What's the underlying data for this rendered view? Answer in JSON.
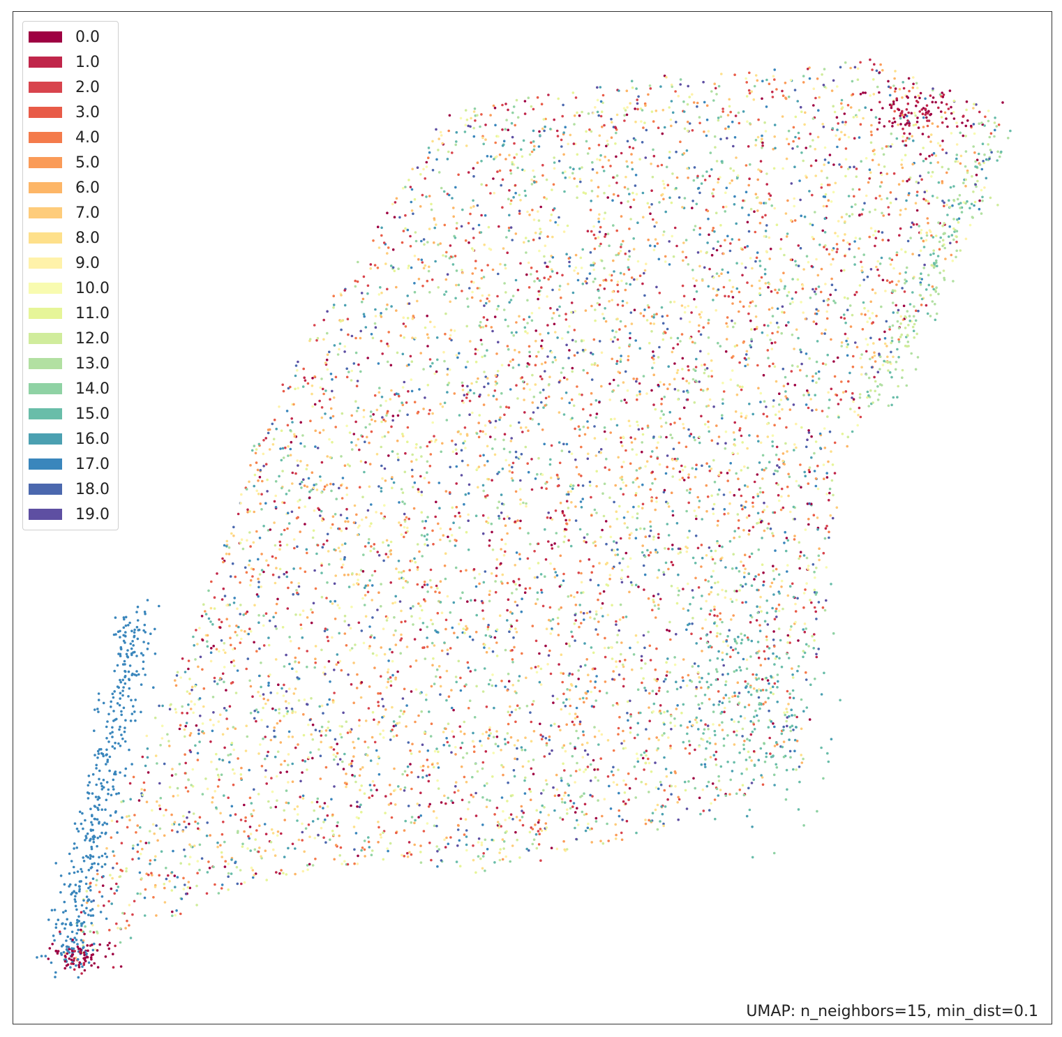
{
  "chart_data": {
    "type": "scatter",
    "title": "",
    "annotation": "UMAP: n_neighbors=15, min_dist=0.1",
    "xlabel": "",
    "ylabel": "",
    "axes_ticks": false,
    "grid": false,
    "legend_placement": "upper-left",
    "colormap": "Spectral",
    "categories": [
      "0.0",
      "1.0",
      "2.0",
      "3.0",
      "4.0",
      "5.0",
      "6.0",
      "7.0",
      "8.0",
      "9.0",
      "10.0",
      "11.0",
      "12.0",
      "13.0",
      "14.0",
      "15.0",
      "16.0",
      "17.0",
      "18.0",
      "19.0"
    ],
    "colors": [
      "#9e0142",
      "#c0264a",
      "#d8444d",
      "#e85b48",
      "#f47b4b",
      "#fa9b58",
      "#fdb667",
      "#fecc7b",
      "#fee08b",
      "#fff2aa",
      "#f8fbb0",
      "#e6f598",
      "#d0ec9c",
      "#b2e0a2",
      "#8fd2a4",
      "#69bda9",
      "#4ba0b1",
      "#3a86bc",
      "#4b68ae",
      "#5e4fa2"
    ],
    "point_count_approx": 10000,
    "regions": [
      {
        "name": "main-body",
        "category": "mixed",
        "description": "diagonal cloud of all categories"
      },
      {
        "name": "lower-left-arm",
        "category": "17.0",
        "description": "blue arm at lower left"
      },
      {
        "name": "upper-right-tip",
        "category": "0.0",
        "description": "dark red concentration at upper right"
      }
    ]
  }
}
